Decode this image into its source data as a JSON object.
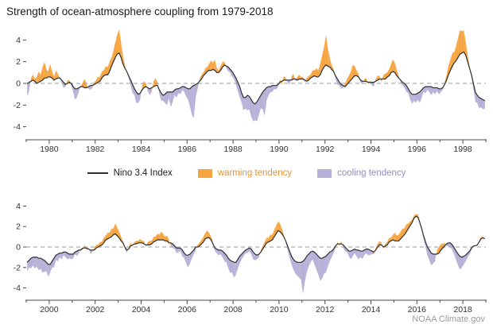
{
  "header": {
    "title": "Strength of ocean-atmosphere coupling from 1979-2018"
  },
  "legend": {
    "line_label": "Nino 3.4 Index",
    "warming_label": "warming tendency",
    "cooling_label": "cooling tendency"
  },
  "footer": {
    "credit": "NOAA Climate.gov"
  },
  "chart_data": {
    "type": "line+area",
    "title": "Strength of ocean-atmosphere coupling from 1979-2018",
    "x_unit": "monthly values, Jan 1979 - Dec 2018",
    "x_start_year": 1979,
    "months_per_year": 12,
    "ylim": [
      -5.2,
      5.2
    ],
    "yticks": [
      4,
      2,
      0,
      -2,
      -4
    ],
    "zero_line_dashed": true,
    "grid": false,
    "legend_position": "between panels, centered",
    "panels": [
      {
        "x_range": [
          1979,
          1999
        ],
        "x_tick_labels": [
          1980,
          1982,
          1984,
          1986,
          1988,
          1990,
          1992,
          1994,
          1996,
          1998
        ]
      },
      {
        "x_range": [
          1999,
          2019
        ],
        "x_tick_labels": [
          2000,
          2002,
          2004,
          2006,
          2008,
          2010,
          2012,
          2014,
          2016,
          2018
        ]
      }
    ],
    "colors": {
      "line": "#2e2e2e",
      "warming": "#f7a541",
      "cooling": "#b7b0d8",
      "warming_text": "#ee9330",
      "cooling_text": "#958cc6",
      "zero": "#9a9a9a",
      "axis": "#4a4a4a"
    },
    "series_notes": "tendency curve = nino34 + coupling_delta; orange fill where tendency is above the index line (warming tendency), purple fill where below (cooling tendency)",
    "series_monthly": {
      "nino34": [
        0.0,
        0.1,
        0.2,
        0.3,
        0.2,
        0.0,
        0.1,
        0.2,
        0.3,
        0.5,
        0.5,
        0.6,
        0.6,
        0.5,
        0.3,
        0.4,
        0.5,
        0.5,
        0.3,
        0.1,
        -0.1,
        0.0,
        0.1,
        0.0,
        -0.3,
        -0.5,
        -0.5,
        -0.4,
        -0.3,
        -0.3,
        -0.4,
        -0.4,
        -0.3,
        -0.2,
        -0.2,
        -0.1,
        0.0,
        0.1,
        0.2,
        0.5,
        0.7,
        0.8,
        0.8,
        1.1,
        1.6,
        2.0,
        2.4,
        2.7,
        2.8,
        2.4,
        1.8,
        1.4,
        1.1,
        0.7,
        0.3,
        -0.1,
        -0.5,
        -0.8,
        -1.0,
        -0.9,
        -0.6,
        -0.4,
        -0.3,
        -0.4,
        -0.5,
        -0.4,
        -0.3,
        -0.2,
        -0.2,
        -0.6,
        -0.9,
        -1.1,
        -1.0,
        -0.8,
        -0.8,
        -0.8,
        -0.8,
        -0.6,
        -0.5,
        -0.5,
        -0.4,
        -0.3,
        -0.3,
        -0.4,
        -0.5,
        -0.5,
        -0.3,
        -0.2,
        -0.1,
        0.0,
        0.2,
        0.4,
        0.7,
        0.9,
        1.1,
        1.2,
        1.2,
        1.3,
        1.2,
        1.0,
        1.0,
        1.2,
        1.5,
        1.7,
        1.6,
        1.5,
        1.3,
        1.1,
        0.8,
        0.5,
        0.1,
        -0.3,
        -0.9,
        -1.3,
        -1.3,
        -1.1,
        -1.2,
        -1.5,
        -1.8,
        -1.9,
        -1.7,
        -1.4,
        -1.1,
        -0.8,
        -0.6,
        -0.4,
        -0.3,
        -0.3,
        -0.2,
        -0.2,
        -0.2,
        -0.1,
        0.1,
        0.2,
        0.3,
        0.3,
        0.3,
        0.3,
        0.3,
        0.4,
        0.4,
        0.3,
        0.4,
        0.4,
        0.4,
        0.3,
        0.2,
        0.3,
        0.5,
        0.6,
        0.7,
        0.6,
        0.6,
        0.8,
        1.2,
        1.5,
        1.7,
        1.6,
        1.5,
        1.3,
        1.1,
        0.7,
        0.4,
        0.1,
        -0.1,
        -0.2,
        -0.3,
        -0.1,
        0.1,
        0.3,
        0.5,
        0.7,
        0.7,
        0.6,
        0.3,
        0.2,
        0.2,
        0.2,
        0.1,
        0.1,
        0.1,
        0.1,
        0.2,
        0.3,
        0.4,
        0.4,
        0.4,
        0.4,
        0.6,
        0.7,
        1.0,
        1.1,
        1.0,
        0.7,
        0.5,
        0.3,
        0.1,
        0.0,
        -0.2,
        -0.5,
        -0.8,
        -1.0,
        -1.0,
        -1.0,
        -0.9,
        -0.8,
        -0.6,
        -0.4,
        -0.3,
        -0.3,
        -0.3,
        -0.3,
        -0.4,
        -0.4,
        -0.4,
        -0.5,
        -0.5,
        -0.4,
        -0.1,
        0.3,
        0.8,
        1.2,
        1.6,
        1.9,
        2.1,
        2.4,
        2.7,
        2.8,
        2.9,
        2.6,
        2.0,
        1.4,
        0.8,
        0.0,
        -0.8,
        -1.1,
        -1.3,
        -1.4,
        -1.5,
        -1.6,
        -1.5,
        -1.3,
        -1.1,
        -1.0,
        -1.0,
        -1.0,
        -1.1,
        -1.1,
        -1.2,
        -1.3,
        -1.5,
        -1.7,
        -1.7,
        -1.4,
        -1.1,
        -0.8,
        -0.7,
        -0.6,
        -0.6,
        -0.5,
        -0.5,
        -0.6,
        -0.7,
        -0.7,
        -0.7,
        -0.5,
        -0.4,
        -0.3,
        -0.3,
        -0.1,
        -0.1,
        -0.1,
        -0.2,
        -0.3,
        -0.3,
        -0.3,
        -0.1,
        0.0,
        0.1,
        0.2,
        0.4,
        0.7,
        0.8,
        0.9,
        1.0,
        1.2,
        1.3,
        1.1,
        0.9,
        0.6,
        0.4,
        0.0,
        -0.3,
        -0.2,
        0.1,
        0.2,
        0.3,
        0.3,
        0.4,
        0.4,
        0.4,
        0.3,
        0.2,
        0.2,
        0.2,
        0.3,
        0.5,
        0.6,
        0.7,
        0.7,
        0.7,
        0.7,
        0.6,
        0.6,
        0.4,
        0.4,
        0.3,
        0.1,
        -0.1,
        -0.1,
        -0.1,
        -0.3,
        -0.6,
        -0.8,
        -0.8,
        -0.7,
        -0.5,
        -0.3,
        0.0,
        0.0,
        0.1,
        0.3,
        0.5,
        0.8,
        0.9,
        0.9,
        0.7,
        0.3,
        -0.1,
        -0.2,
        -0.3,
        -0.3,
        -0.4,
        -0.6,
        -0.8,
        -1.1,
        -1.3,
        -1.4,
        -1.5,
        -1.5,
        -1.2,
        -0.9,
        -0.7,
        -0.5,
        -0.3,
        -0.2,
        -0.1,
        -0.2,
        -0.5,
        -0.7,
        -0.8,
        -0.7,
        -0.5,
        -0.2,
        0.1,
        0.4,
        0.5,
        0.6,
        0.7,
        1.0,
        1.3,
        1.6,
        1.5,
        1.3,
        1.0,
        0.6,
        0.1,
        -0.4,
        -0.9,
        -1.2,
        -1.4,
        -1.5,
        -1.5,
        -1.5,
        -1.4,
        -1.2,
        -0.9,
        -0.7,
        -0.5,
        -0.4,
        -0.5,
        -0.7,
        -0.9,
        -1.1,
        -1.1,
        -1.0,
        -0.9,
        -0.7,
        -0.5,
        -0.4,
        -0.2,
        0.1,
        0.3,
        0.3,
        0.3,
        0.2,
        0.0,
        -0.2,
        -0.4,
        -0.4,
        -0.3,
        -0.2,
        -0.3,
        -0.3,
        -0.4,
        -0.4,
        -0.3,
        -0.2,
        -0.2,
        -0.3,
        -0.4,
        -0.5,
        -0.3,
        0.0,
        0.2,
        0.2,
        0.0,
        0.1,
        0.2,
        0.5,
        0.6,
        0.7,
        0.6,
        0.6,
        0.6,
        0.8,
        1.0,
        1.2,
        1.5,
        1.8,
        2.1,
        2.4,
        2.8,
        3.0,
        2.9,
        2.4,
        1.8,
        1.1,
        0.5,
        0.0,
        -0.3,
        -0.6,
        -0.7,
        -0.7,
        -0.7,
        -0.6,
        -0.3,
        -0.1,
        0.1,
        0.3,
        0.4,
        0.4,
        0.2,
        -0.1,
        -0.4,
        -0.7,
        -0.9,
        -1.0,
        -0.9,
        -0.8,
        -0.6,
        -0.4,
        -0.1,
        0.1,
        0.1,
        0.2,
        0.5,
        0.8,
        0.9,
        0.8
      ],
      "coupling_delta": [
        -1.2,
        -0.8,
        0.3,
        0.5,
        0.2,
        0.6,
        1.0,
        0.6,
        1.2,
        1.5,
        0.8,
        0.5,
        1.2,
        0.6,
        0.3,
        0.8,
        0.4,
        0.0,
        -0.3,
        -0.5,
        -0.2,
        0.3,
        0.2,
        -0.2,
        -0.5,
        -1.0,
        -0.8,
        -0.3,
        0.0,
        0.4,
        0.8,
        0.3,
        -0.2,
        -0.4,
        -0.2,
        0.2,
        0.3,
        0.5,
        0.4,
        0.6,
        0.5,
        0.8,
        0.7,
        0.9,
        0.8,
        1.0,
        1.4,
        1.8,
        2.2,
        1.4,
        0.8,
        0.3,
        0.0,
        -0.2,
        -0.5,
        -0.8,
        -0.6,
        -1.0,
        -0.8,
        -0.6,
        0.4,
        0.6,
        0.3,
        -0.3,
        -0.6,
        -0.4,
        0.5,
        0.7,
        0.3,
        -0.4,
        -0.7,
        -0.5,
        -0.8,
        -1.2,
        -0.6,
        -1.4,
        -0.9,
        -0.5,
        -0.8,
        -0.4,
        -0.6,
        -0.3,
        -0.5,
        -0.8,
        -1.0,
        -1.6,
        -2.6,
        -3.0,
        -1.2,
        -0.5,
        0.2,
        0.4,
        0.3,
        0.5,
        0.4,
        0.6,
        0.9,
        0.6,
        1.0,
        0.4,
        0.2,
        0.4,
        0.5,
        0.3,
        -0.2,
        -0.4,
        -0.3,
        -0.5,
        -0.4,
        -0.6,
        -0.8,
        -1.0,
        -0.9,
        -1.2,
        -1.0,
        -1.4,
        -1.2,
        -1.6,
        -1.7,
        -1.5,
        -1.8,
        -1.5,
        -1.2,
        -1.6,
        -2.4,
        -1.2,
        -0.8,
        -0.5,
        -0.6,
        -0.3,
        -0.4,
        -0.2,
        0.3,
        -0.3,
        0.4,
        0.2,
        -0.2,
        -0.4,
        0.3,
        0.5,
        -0.2,
        0.3,
        0.4,
        0.2,
        0.2,
        -0.2,
        0.3,
        0.4,
        0.3,
        0.6,
        0.5,
        0.8,
        0.6,
        1.0,
        1.4,
        1.8,
        2.8,
        1.6,
        0.9,
        0.4,
        0.2,
        -0.3,
        -0.5,
        -0.3,
        -0.4,
        -0.2,
        0.3,
        0.5,
        0.6,
        0.8,
        1.2,
        0.9,
        0.5,
        0.3,
        -0.2,
        -0.3,
        0.2,
        0.3,
        -0.2,
        0.2,
        -0.3,
        -0.4,
        0.2,
        0.4,
        0.3,
        -0.3,
        0.4,
        0.5,
        0.4,
        0.6,
        0.8,
        1.1,
        0.9,
        0.5,
        0.2,
        -0.2,
        -0.3,
        -0.4,
        -0.6,
        -0.4,
        -0.7,
        -0.9,
        -0.6,
        -0.8,
        -0.6,
        -1.0,
        -0.7,
        -0.4,
        -0.6,
        -0.3,
        -0.5,
        -0.8,
        -0.4,
        -0.6,
        -0.3,
        -0.5,
        -0.3,
        -0.2,
        0.2,
        0.5,
        0.8,
        1.0,
        1.2,
        1.0,
        1.4,
        1.8,
        2.2,
        2.0,
        2.0,
        1.2,
        0.6,
        0.2,
        -0.2,
        -0.5,
        -0.9,
        -0.7,
        -1.0,
        -0.8,
        -0.9,
        -0.7,
        -0.9,
        -0.7,
        -1.0,
        -0.8,
        -1.1,
        -0.9,
        -1.2,
        -1.0,
        -1.3,
        -1.1,
        -0.9,
        -1.2,
        -0.8,
        -0.6,
        -0.9,
        -0.5,
        -0.7,
        -0.4,
        -0.6,
        -0.3,
        -0.5,
        -0.6,
        -0.4,
        -0.5,
        -0.4,
        -0.2,
        -0.5,
        -0.3,
        0.2,
        -0.2,
        0.3,
        -0.3,
        0.2,
        -0.4,
        -0.2,
        0.2,
        0.3,
        0.2,
        0.4,
        0.3,
        0.5,
        0.4,
        0.6,
        0.5,
        0.8,
        0.6,
        1.0,
        0.8,
        0.6,
        0.4,
        0.2,
        -0.2,
        -0.3,
        0.2,
        0.3,
        -0.2,
        0.2,
        0.3,
        0.2,
        0.4,
        0.2,
        0.3,
        -0.2,
        0.3,
        0.4,
        0.3,
        0.5,
        0.4,
        0.6,
        0.5,
        0.8,
        0.6,
        0.4,
        0.5,
        0.3,
        -0.3,
        -0.4,
        -0.3,
        -0.5,
        -0.4,
        -0.3,
        -0.6,
        -0.5,
        -0.8,
        -1.2,
        -0.9,
        -0.6,
        -0.4,
        -0.3,
        0.2,
        0.3,
        0.4,
        0.5,
        0.6,
        0.7,
        0.5,
        0.3,
        0.2,
        -0.3,
        -0.4,
        -0.5,
        -0.4,
        -0.6,
        -0.8,
        -0.7,
        -1.0,
        -1.2,
        -1.1,
        -1.5,
        -1.2,
        -0.9,
        -0.7,
        -0.5,
        -0.4,
        -0.3,
        -0.4,
        -0.3,
        -0.5,
        -0.7,
        -0.6,
        -0.4,
        -0.3,
        0.2,
        0.3,
        0.4,
        0.5,
        0.4,
        0.6,
        0.5,
        0.7,
        0.8,
        0.9,
        0.8,
        0.5,
        0.2,
        -0.2,
        -0.4,
        -0.6,
        -0.8,
        -1.0,
        -1.2,
        -1.3,
        -1.5,
        -1.7,
        -3.2,
        -2.2,
        -1.6,
        -1.2,
        -1.0,
        -0.8,
        -1.2,
        -1.5,
        -1.8,
        -2.2,
        -2.0,
        -1.6,
        -1.6,
        -1.2,
        -0.9,
        -0.6,
        -0.4,
        -0.2,
        0.2,
        -0.2,
        0.3,
        -0.3,
        -0.4,
        -0.3,
        -0.5,
        -0.8,
        -0.6,
        -0.4,
        -0.6,
        -0.9,
        -0.6,
        -0.8,
        -0.5,
        -0.4,
        -0.6,
        -0.5,
        -0.3,
        -0.2,
        0.2,
        0.3,
        0.4,
        0.2,
        -0.2,
        0.2,
        0.3,
        0.4,
        0.3,
        0.5,
        0.8,
        0.5,
        0.6,
        0.7,
        0.8,
        0.6,
        0.7,
        0.5,
        0.4,
        0.3,
        0.3,
        0.2,
        0.3,
        0.2,
        -0.2,
        -0.3,
        -0.5,
        -0.8,
        -1.0,
        -1.2,
        -0.9,
        -0.7,
        0.4,
        0.6,
        0.6,
        0.4,
        0.3,
        -0.2,
        -0.3,
        -0.4,
        -0.5,
        -0.7,
        -0.9,
        -1.1,
        -1.3,
        -1.0,
        -0.8,
        -0.6,
        -0.4,
        -0.3,
        -0.2,
        0.0,
        0.1,
        0.0,
        0.1,
        0.2,
        0.1,
        0.0
      ]
    }
  }
}
